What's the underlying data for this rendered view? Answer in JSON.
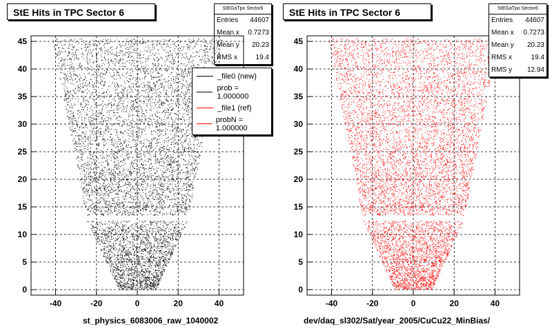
{
  "pads": [
    {
      "title": "StE Hits in TPC Sector 6",
      "xlabel": "st_physics_6083006_raw_1040002",
      "stats": {
        "header": "StEGaTpo Sector6",
        "rows": [
          {
            "label": "Entries",
            "value": "44607"
          },
          {
            "label": "Mean x",
            "value": "0.7273"
          },
          {
            "label": "Mean y",
            "value": "20.23"
          },
          {
            "label": "RMS x",
            "value": "19.4"
          }
        ]
      },
      "legend": [
        {
          "label": "_file0 (new)",
          "color": "#000000"
        },
        {
          "label": "prob = 1.000000",
          "color": "#000000"
        },
        {
          "label": "_file1 (ref)",
          "color": "#ff0000"
        },
        {
          "label": "probN = 1.000000",
          "color": "#ff0000"
        }
      ],
      "color": "#000000"
    },
    {
      "title": "StE Hits in TPC Sector 6",
      "xlabel": "dev/daq_sl302/Sat/year_2005/CuCu22_MinBias/",
      "stats": {
        "header": "StEGaTpo Sector6",
        "rows": [
          {
            "label": "Entries",
            "value": "44607"
          },
          {
            "label": "Mean x",
            "value": "0.7273"
          },
          {
            "label": "Mean y",
            "value": "20.23"
          },
          {
            "label": "RMS x",
            "value": "19.4"
          },
          {
            "label": "RMS y",
            "value": "12.94"
          }
        ]
      },
      "color": "#ff0000"
    }
  ],
  "chart_data": [
    {
      "type": "scatter",
      "title": "StE Hits in TPC Sector 6",
      "xlabel": "st_physics_6083006_raw_1040002",
      "ylabel": "",
      "xlim": [
        -52,
        52
      ],
      "ylim": [
        -1,
        46
      ],
      "xticks": [
        -40,
        -20,
        0,
        20,
        40
      ],
      "yticks": [
        0,
        5,
        10,
        15,
        20,
        25,
        30,
        35,
        40,
        45
      ],
      "grid": true,
      "series": [
        {
          "name": "_file0 (new)",
          "color": "#000000"
        }
      ]
    },
    {
      "type": "scatter",
      "title": "StE Hits in TPC Sector 6",
      "xlabel": "dev/daq_sl302/Sat/year_2005/CuCu22_MinBias/",
      "ylabel": "",
      "xlim": [
        -52,
        52
      ],
      "ylim": [
        -1,
        46
      ],
      "xticks": [
        -40,
        -20,
        0,
        20,
        40
      ],
      "yticks": [
        0,
        5,
        10,
        15,
        20,
        25,
        30,
        35,
        40,
        45
      ],
      "grid": true,
      "series": [
        {
          "name": "_file1 (ref)",
          "color": "#ff0000"
        }
      ]
    }
  ]
}
